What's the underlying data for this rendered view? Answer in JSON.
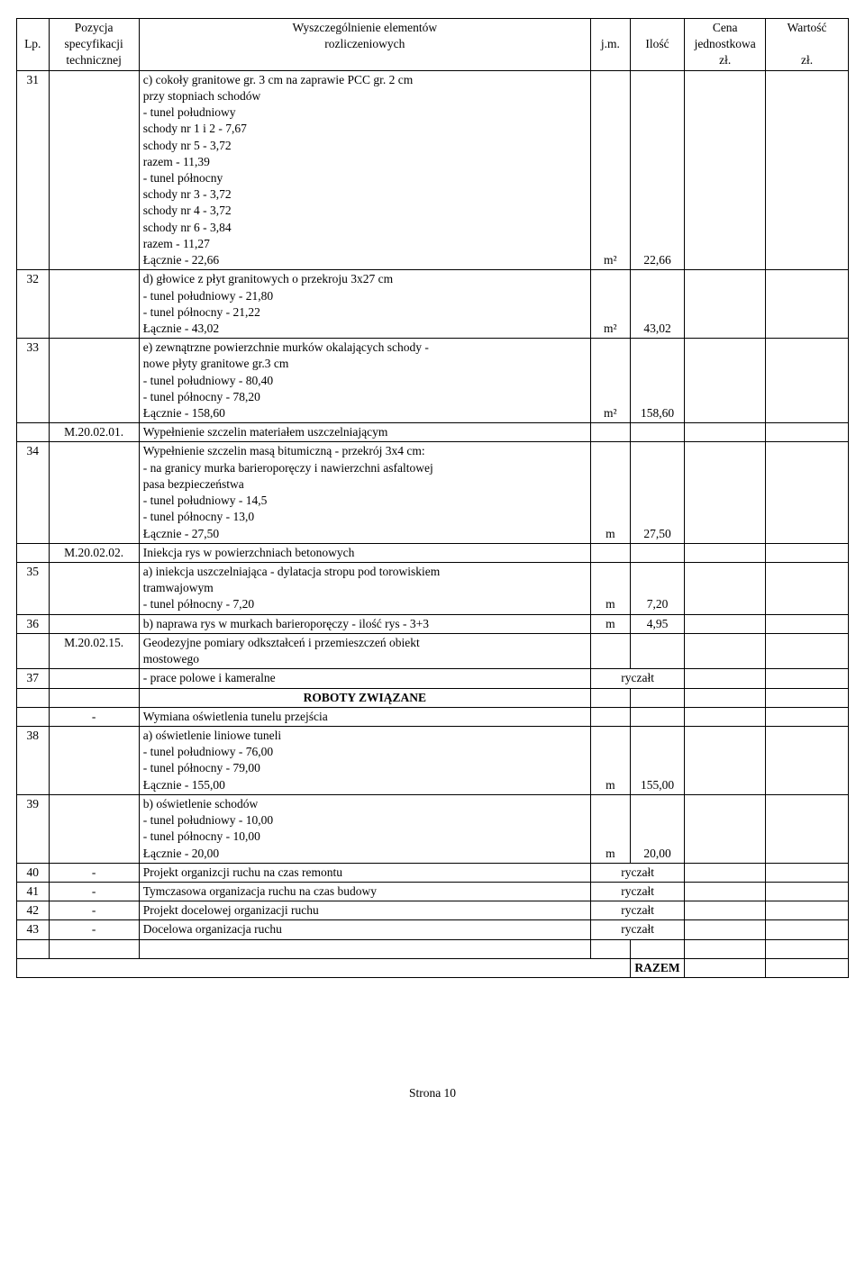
{
  "header": {
    "lp": "Lp.",
    "spec1": "Pozycja",
    "spec2": "specyfikacji",
    "spec3": "technicznej",
    "desc1": "Wyszczególnienie elementów",
    "desc2": "rozliczeniowych",
    "jm": "j.m.",
    "il": "Ilość",
    "cj1": "Cena",
    "cj2": "jednostkowa",
    "cj3": "zł.",
    "w1": "Wartość",
    "w2": "zł."
  },
  "rows": [
    {
      "lp": "31",
      "spec": "",
      "desc": [
        "c) cokoły granitowe gr. 3 cm na zaprawie PCC gr. 2 cm",
        "przy stopniach schodów",
        " - tunel południowy",
        "schody nr 1 i 2 - 7,67",
        "schody nr 5 - 3,72",
        "razem - 11,39",
        " - tunel północny",
        "schody nr 3 - 3,72",
        "schody nr 4 - 3,72",
        "schody nr 6 - 3,84",
        "razem - 11,27",
        "Łącznie - 22,66"
      ],
      "jm": "m²",
      "il": "22,66"
    },
    {
      "lp": "32",
      "spec": "",
      "desc": [
        "d) głowice z płyt granitowych o przekroju 3x27 cm",
        " - tunel południowy - 21,80",
        " - tunel północny - 21,22",
        "Łącznie - 43,02"
      ],
      "jm": "m²",
      "il": "43,02"
    },
    {
      "lp": "33",
      "spec": "",
      "desc": [
        "e) zewnątrzne powierzchnie murków okalających schody -",
        "nowe płyty granitowe gr.3 cm",
        " - tunel południowy - 80,40",
        " - tunel północny - 78,20",
        "Łącznie - 158,60"
      ],
      "jm": "m²",
      "il": "158,60"
    },
    {
      "lp": "",
      "spec": "M.20.02.01.",
      "desc": [
        "Wypełnienie szczelin materiałem uszczelniającym"
      ],
      "jm": "",
      "il": ""
    },
    {
      "lp": "34",
      "spec": "",
      "desc": [
        "Wypełnienie szczelin masą bitumiczną - przekrój 3x4 cm:",
        " - na granicy murka barieroporęczy i nawierzchni asfaltowej",
        "pasa bezpieczeństwa",
        " - tunel południowy - 14,5",
        " - tunel północny - 13,0",
        "Łącznie - 27,50"
      ],
      "jm": "m",
      "il": "27,50"
    },
    {
      "lp": "",
      "spec": "M.20.02.02.",
      "desc": [
        "Iniekcja rys w powierzchniach betonowych"
      ],
      "jm": "",
      "il": ""
    },
    {
      "lp": "35",
      "spec": "",
      "desc": [
        "a) iniekcja uszczelniająca - dylatacja stropu pod torowiskiem",
        "tramwajowym",
        " - tunel północny - 7,20"
      ],
      "jm": "m",
      "il": "7,20"
    },
    {
      "lp": "36",
      "spec": "",
      "desc": [
        "b) naprawa rys w murkach barieroporęczy - ilość rys - 3+3"
      ],
      "jm": "m",
      "il": "4,95"
    },
    {
      "lp": "",
      "spec": "M.20.02.15.",
      "desc": [
        "Geodezyjne pomiary odkształceń i przemieszczeń obiekt",
        " mostowego"
      ],
      "jm": "",
      "il": ""
    },
    {
      "lp": "37",
      "spec": "",
      "desc": [
        " - prace polowe i kameralne"
      ],
      "jm": "",
      "il": "ryczałt",
      "il_colspan": true
    },
    {
      "lp": "",
      "spec": "",
      "desc_bold_center": "ROBOTY ZWIĄZANE",
      "jm": "",
      "il": ""
    },
    {
      "lp": "",
      "spec": "-",
      "desc": [
        "Wymiana oświetlenia tunelu przejścia"
      ],
      "jm": "",
      "il": ""
    },
    {
      "lp": "38",
      "spec": "",
      "desc": [
        "a) oświetlenie liniowe tuneli",
        " - tunel południowy - 76,00",
        " - tunel północny - 79,00",
        "Łącznie - 155,00"
      ],
      "jm": "m",
      "il": "155,00"
    },
    {
      "lp": "39",
      "spec": "",
      "desc": [
        "b) oświetlenie schodów",
        " - tunel południowy - 10,00",
        " - tunel północny - 10,00",
        "Łącznie - 20,00"
      ],
      "jm": "m",
      "il": "20,00"
    },
    {
      "lp": "40",
      "spec": "-",
      "desc": [
        "Projekt organizcji ruchu na czas remontu"
      ],
      "jm": "",
      "il": "ryczałt",
      "il_colspan": true
    },
    {
      "lp": "41",
      "spec": "-",
      "desc": [
        "Tymczasowa organizacja ruchu na czas budowy"
      ],
      "jm": "",
      "il": "ryczałt",
      "il_colspan": true
    },
    {
      "lp": "42",
      "spec": "-",
      "desc": [
        "Projekt docelowej organizacji ruchu"
      ],
      "jm": "",
      "il": "ryczałt",
      "il_colspan": true
    },
    {
      "lp": "43",
      "spec": "-",
      "desc": [
        "Docelowa organizacja ruchu"
      ],
      "jm": "",
      "il": "ryczałt",
      "il_colspan": true
    }
  ],
  "blank_row": true,
  "razem_row": {
    "label": "RAZEM"
  },
  "page_num": "Strona 10"
}
